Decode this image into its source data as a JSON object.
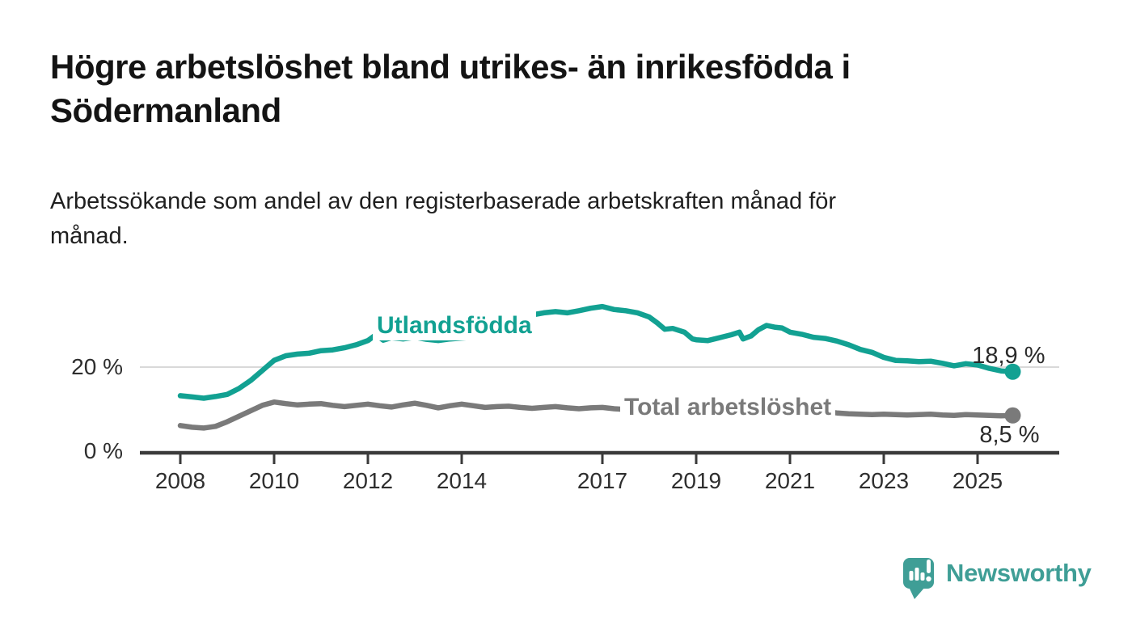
{
  "header": {
    "title_lines": [
      "Högre arbetslöshet bland utrikes- än inrikesfödda i",
      "Södermanland"
    ],
    "subtitle_lines": [
      "Arbetssökande som andel av den registerbaserade arbetskraften månad för",
      "månad."
    ]
  },
  "chart_data": {
    "type": "line",
    "title": "Högre arbetslöshet bland utrikes- än inrikesfödda i Södermanland",
    "subtitle": "Arbetssökande som andel av den registerbaserade arbetskraften månad för månad.",
    "unit": "%",
    "xlabel": "",
    "ylabel": "",
    "ylim": [
      0,
      36
    ],
    "x_range_years": [
      2007.1,
      2026.7
    ],
    "grid": "horizontal-gridline-at-20-only",
    "legend_position": "inline-series-labels",
    "x_ticks": [
      "2008",
      "2010",
      "2012",
      "2014",
      "2017",
      "2019",
      "2021",
      "2023",
      "2025"
    ],
    "x_tick_years": [
      2008,
      2010,
      2012,
      2014,
      2017,
      2019,
      2021,
      2023,
      2025
    ],
    "y_ticks": [
      {
        "value": 0,
        "label": "0 %"
      },
      {
        "value": 20,
        "label": "20 %"
      }
    ],
    "colors": {
      "axis": "#3A3A3A",
      "grid": "#D9D9D9",
      "tick_text": "#2E2E2E",
      "value_text": "#2A2A2A"
    },
    "series": [
      {
        "name": "Utlandsfödda",
        "color": "#12A192",
        "end_label": "18,9 %",
        "end_value": 18.9,
        "points": [
          [
            2008.0,
            13.2
          ],
          [
            2008.25,
            12.9
          ],
          [
            2008.5,
            12.6
          ],
          [
            2008.75,
            13.0
          ],
          [
            2009.0,
            13.5
          ],
          [
            2009.25,
            14.9
          ],
          [
            2009.5,
            16.8
          ],
          [
            2009.75,
            19.2
          ],
          [
            2010.0,
            21.6
          ],
          [
            2010.25,
            22.7
          ],
          [
            2010.5,
            23.1
          ],
          [
            2010.75,
            23.3
          ],
          [
            2011.0,
            23.9
          ],
          [
            2011.25,
            24.1
          ],
          [
            2011.5,
            24.6
          ],
          [
            2011.75,
            25.3
          ],
          [
            2012.0,
            26.3
          ],
          [
            2012.17,
            27.7
          ],
          [
            2012.33,
            26.4
          ],
          [
            2012.5,
            27.0
          ],
          [
            2012.75,
            26.7
          ],
          [
            2013.0,
            27.1
          ],
          [
            2013.25,
            26.6
          ],
          [
            2013.5,
            26.3
          ],
          [
            2013.75,
            26.7
          ],
          [
            2014.0,
            26.9
          ],
          [
            2014.25,
            27.1
          ],
          [
            2014.5,
            27.7
          ],
          [
            2014.75,
            28.6
          ],
          [
            2015.0,
            29.9
          ],
          [
            2015.25,
            31.3
          ],
          [
            2015.5,
            32.4
          ],
          [
            2015.75,
            32.9
          ],
          [
            2016.0,
            33.2
          ],
          [
            2016.25,
            32.9
          ],
          [
            2016.5,
            33.4
          ],
          [
            2016.75,
            34.0
          ],
          [
            2017.0,
            34.4
          ],
          [
            2017.25,
            33.7
          ],
          [
            2017.5,
            33.4
          ],
          [
            2017.75,
            32.9
          ],
          [
            2018.0,
            31.9
          ],
          [
            2018.17,
            30.5
          ],
          [
            2018.33,
            29.0
          ],
          [
            2018.5,
            29.2
          ],
          [
            2018.75,
            28.3
          ],
          [
            2018.92,
            26.7
          ],
          [
            2019.0,
            26.5
          ],
          [
            2019.25,
            26.3
          ],
          [
            2019.5,
            27.0
          ],
          [
            2019.75,
            27.7
          ],
          [
            2019.92,
            28.3
          ],
          [
            2020.0,
            26.7
          ],
          [
            2020.17,
            27.4
          ],
          [
            2020.33,
            28.9
          ],
          [
            2020.5,
            29.9
          ],
          [
            2020.67,
            29.5
          ],
          [
            2020.83,
            29.3
          ],
          [
            2021.0,
            28.3
          ],
          [
            2021.25,
            27.8
          ],
          [
            2021.5,
            27.1
          ],
          [
            2021.75,
            26.8
          ],
          [
            2022.0,
            26.2
          ],
          [
            2022.25,
            25.3
          ],
          [
            2022.5,
            24.2
          ],
          [
            2022.75,
            23.5
          ],
          [
            2023.0,
            22.3
          ],
          [
            2023.25,
            21.6
          ],
          [
            2023.5,
            21.5
          ],
          [
            2023.75,
            21.3
          ],
          [
            2024.0,
            21.4
          ],
          [
            2024.25,
            20.9
          ],
          [
            2024.5,
            20.3
          ],
          [
            2024.75,
            20.8
          ],
          [
            2025.0,
            20.5
          ],
          [
            2025.25,
            19.7
          ],
          [
            2025.5,
            19.1
          ],
          [
            2025.75,
            18.9
          ]
        ]
      },
      {
        "name": "Total arbetslöshet",
        "color": "#7A7A7A",
        "end_label": "8,5 %",
        "end_value": 8.5,
        "points": [
          [
            2008.0,
            6.1
          ],
          [
            2008.25,
            5.7
          ],
          [
            2008.5,
            5.5
          ],
          [
            2008.75,
            5.9
          ],
          [
            2009.0,
            7.0
          ],
          [
            2009.25,
            8.3
          ],
          [
            2009.5,
            9.6
          ],
          [
            2009.75,
            10.9
          ],
          [
            2010.0,
            11.7
          ],
          [
            2010.25,
            11.3
          ],
          [
            2010.5,
            11.0
          ],
          [
            2010.75,
            11.2
          ],
          [
            2011.0,
            11.3
          ],
          [
            2011.25,
            10.9
          ],
          [
            2011.5,
            10.6
          ],
          [
            2011.75,
            10.9
          ],
          [
            2012.0,
            11.2
          ],
          [
            2012.25,
            10.8
          ],
          [
            2012.5,
            10.5
          ],
          [
            2012.75,
            11.0
          ],
          [
            2013.0,
            11.4
          ],
          [
            2013.25,
            10.9
          ],
          [
            2013.5,
            10.3
          ],
          [
            2013.75,
            10.8
          ],
          [
            2014.0,
            11.2
          ],
          [
            2014.25,
            10.8
          ],
          [
            2014.5,
            10.4
          ],
          [
            2014.75,
            10.6
          ],
          [
            2015.0,
            10.7
          ],
          [
            2015.25,
            10.4
          ],
          [
            2015.5,
            10.2
          ],
          [
            2015.75,
            10.4
          ],
          [
            2016.0,
            10.6
          ],
          [
            2016.25,
            10.3
          ],
          [
            2016.5,
            10.1
          ],
          [
            2016.75,
            10.3
          ],
          [
            2017.0,
            10.4
          ],
          [
            2017.25,
            10.1
          ],
          [
            2017.5,
            9.9
          ],
          [
            2017.75,
            9.8
          ],
          [
            2018.0,
            9.9
          ],
          [
            2018.25,
            9.7
          ],
          [
            2018.5,
            9.5
          ],
          [
            2018.75,
            9.6
          ],
          [
            2019.0,
            9.7
          ],
          [
            2019.25,
            9.5
          ],
          [
            2019.5,
            9.4
          ],
          [
            2019.75,
            9.7
          ],
          [
            2020.0,
            9.9
          ],
          [
            2020.25,
            10.4
          ],
          [
            2020.5,
            10.7
          ],
          [
            2020.75,
            10.5
          ],
          [
            2021.0,
            10.2
          ],
          [
            2021.25,
            9.9
          ],
          [
            2021.5,
            9.7
          ],
          [
            2021.75,
            9.4
          ],
          [
            2022.0,
            9.1
          ],
          [
            2022.25,
            8.9
          ],
          [
            2022.5,
            8.8
          ],
          [
            2022.75,
            8.7
          ],
          [
            2023.0,
            8.8
          ],
          [
            2023.25,
            8.7
          ],
          [
            2023.5,
            8.6
          ],
          [
            2023.75,
            8.7
          ],
          [
            2024.0,
            8.8
          ],
          [
            2024.25,
            8.6
          ],
          [
            2024.5,
            8.5
          ],
          [
            2024.75,
            8.7
          ],
          [
            2025.0,
            8.6
          ],
          [
            2025.25,
            8.5
          ],
          [
            2025.5,
            8.4
          ],
          [
            2025.75,
            8.5
          ]
        ]
      }
    ]
  },
  "footer": {
    "brand": "Newsworthy",
    "brand_color": "#3F9E96",
    "logo_icon": "speech-bubble-bar-chart-icon"
  }
}
